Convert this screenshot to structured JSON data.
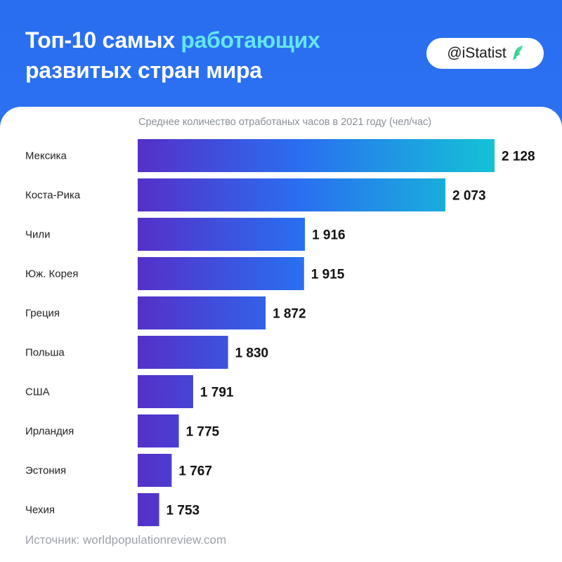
{
  "header": {
    "title_part1": "Топ-10 самых ",
    "title_part2": "работающих",
    "title_line2": "развитых стран мира",
    "brand": "@iStatist",
    "brand_icon": "feather-logo-icon"
  },
  "colors": {
    "background": "#2a6ef0",
    "title_accent": "#63e5ef",
    "bar_gradient_start": "#5530c8",
    "bar_gradient_end": "#14c2d6"
  },
  "chart_data": {
    "type": "bar",
    "orientation": "horizontal",
    "title": "Среднее количество отработаных часов в 2021 году (чел/час)",
    "categories": [
      "Мексика",
      "Коста-Рика",
      "Чили",
      "Юж. Корея",
      "Греция",
      "Польша",
      "США",
      "Ирландия",
      "Эстония",
      "Чехия"
    ],
    "values": [
      2128,
      2073,
      1916,
      1915,
      1872,
      1830,
      1791,
      1775,
      1767,
      1753
    ],
    "value_labels": [
      "2 128",
      "2 073",
      "1 916",
      "1 915",
      "1 872",
      "1 830",
      "1 791",
      "1 775",
      "1 767",
      "1 753"
    ],
    "xlim": [
      1729,
      2128
    ],
    "grid": false,
    "legend": "none"
  },
  "footer": {
    "source": "Источник: worldpopulationreview.com"
  }
}
